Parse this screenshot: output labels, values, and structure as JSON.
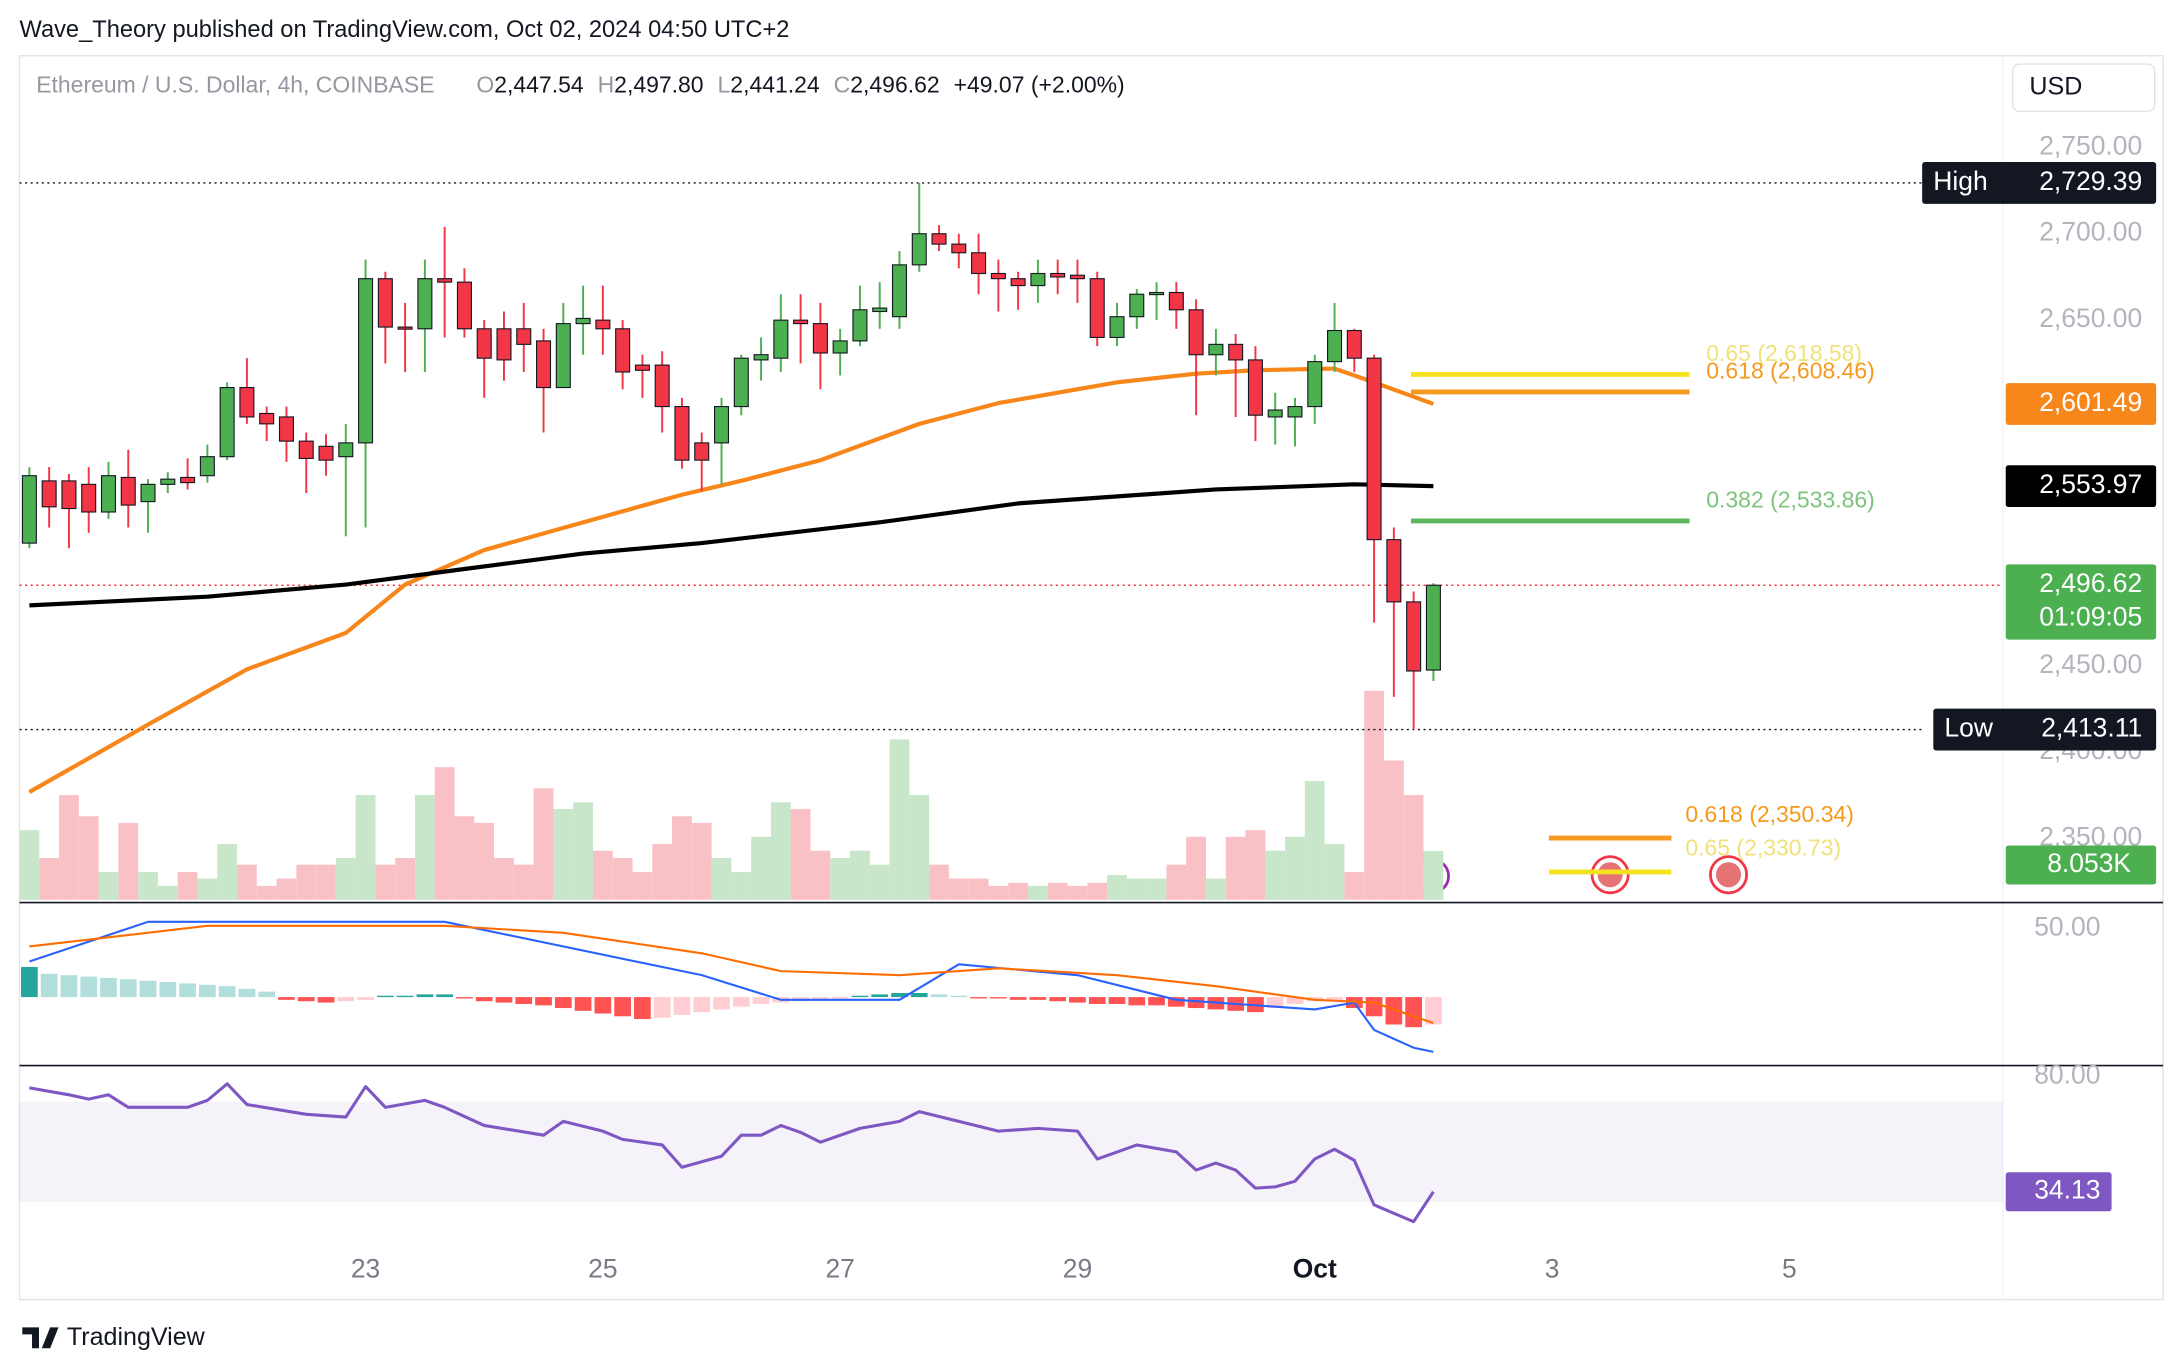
{
  "header": {
    "published": "Wave_Theory published on TradingView.com, Oct 02, 2024 04:50 UTC+2",
    "symbol": "Ethereum / U.S. Dollar, 4h, COINBASE",
    "ohlc": [
      {
        "key": "O",
        "value": "2,447.54"
      },
      {
        "key": "H",
        "value": "2,497.80"
      },
      {
        "key": "L",
        "value": "2,441.24"
      },
      {
        "key": "C",
        "value": "2,496.62"
      }
    ],
    "change": "+49.07 (+2.00%)",
    "currency": "USD"
  },
  "footer": {
    "brand": "TradingView"
  },
  "chart_data": {
    "type": "candlestick",
    "candles": {
      "open": [
        2521,
        2557,
        2557,
        2555,
        2539,
        2559,
        2545,
        2555,
        2559,
        2560,
        2571,
        2611,
        2596,
        2594,
        2580,
        2577,
        2571,
        2579,
        2674,
        2646,
        2645,
        2674,
        2672,
        2645,
        2645,
        2645,
        2638,
        2611,
        2648,
        2650,
        2645,
        2624,
        2624,
        2600,
        2579,
        2579,
        2600,
        2627,
        2628,
        2650,
        2648,
        2631,
        2638,
        2655,
        2652,
        2682,
        2700,
        2694,
        2689,
        2677,
        2674,
        2670,
        2677,
        2676,
        2674,
        2640,
        2652,
        2665,
        2666,
        2656,
        2630,
        2636,
        2627,
        2594,
        2594,
        2600,
        2626,
        2644,
        2628,
        2523,
        2487,
        2447.54
      ],
      "high": [
        2565,
        2565,
        2561,
        2565,
        2568,
        2575,
        2558,
        2562,
        2570,
        2578,
        2614,
        2628,
        2600,
        2600,
        2585,
        2584,
        2590,
        2685,
        2678,
        2660,
        2685,
        2704,
        2680,
        2650,
        2655,
        2660,
        2645,
        2660,
        2670,
        2670,
        2650,
        2630,
        2632,
        2605,
        2585,
        2605,
        2630,
        2640,
        2665,
        2665,
        2660,
        2645,
        2670,
        2672,
        2690,
        2729.39,
        2705,
        2700,
        2700,
        2685,
        2678,
        2685,
        2685,
        2685,
        2678,
        2660,
        2668,
        2672,
        2672,
        2662,
        2645,
        2642,
        2635,
        2608,
        2605,
        2630,
        2660,
        2645,
        2630,
        2530,
        2493,
        2497.8
      ],
      "low": [
        2518,
        2530,
        2518,
        2527,
        2535,
        2530,
        2527,
        2550,
        2552,
        2556,
        2569,
        2590,
        2580,
        2568,
        2550,
        2560,
        2525,
        2530,
        2625,
        2620,
        2620,
        2640,
        2640,
        2605,
        2615,
        2620,
        2585,
        2611,
        2630,
        2630,
        2610,
        2605,
        2585,
        2564,
        2551,
        2555,
        2595,
        2615,
        2620,
        2625,
        2610,
        2618,
        2635,
        2645,
        2645,
        2678,
        2690,
        2680,
        2665,
        2655,
        2656,
        2660,
        2665,
        2660,
        2635,
        2635,
        2645,
        2650,
        2645,
        2595,
        2618,
        2594,
        2580,
        2578,
        2577,
        2590,
        2620,
        2620,
        2475,
        2432,
        2413.11,
        2441.24
      ],
      "close": [
        2560,
        2542,
        2541,
        2539,
        2560,
        2543,
        2555,
        2558,
        2556,
        2571,
        2611,
        2594,
        2590,
        2580,
        2570,
        2569,
        2579,
        2674,
        2646,
        2645,
        2674,
        2672,
        2645,
        2628,
        2627,
        2636,
        2611,
        2648,
        2651,
        2645,
        2620,
        2621,
        2600,
        2569,
        2569,
        2600,
        2628,
        2630,
        2650,
        2648,
        2631,
        2638,
        2656,
        2657,
        2682,
        2700,
        2694,
        2689,
        2677,
        2674,
        2670,
        2677,
        2675,
        2674,
        2640,
        2652,
        2665,
        2666,
        2656,
        2630,
        2636,
        2627,
        2595,
        2598,
        2600,
        2626,
        2644,
        2628,
        2523,
        2487,
        2447,
        2496.62
      ]
    },
    "up_color": "#4caf50",
    "down_color": "#f23645",
    "xlim": [
      -0.5,
      99.8
    ],
    "xticks": [
      {
        "value": 17,
        "label": "23"
      },
      {
        "value": 29,
        "label": "25"
      },
      {
        "value": 41,
        "label": "27"
      },
      {
        "value": 53,
        "label": "29"
      },
      {
        "value": 65,
        "label": "Oct",
        "bold": true
      },
      {
        "value": 77,
        "label": "3"
      },
      {
        "value": 89,
        "label": "5"
      }
    ],
    "ylim": [
      2313,
      2803
    ],
    "yticks": [
      {
        "value": 2750,
        "label": "2,750.00"
      },
      {
        "value": 2700,
        "label": "2,700.00"
      },
      {
        "value": 2650,
        "label": "2,650.00"
      },
      {
        "value": 2450,
        "label": "2,450.00"
      },
      {
        "value": 2400,
        "label": "2,400.00"
      },
      {
        "value": 2350,
        "label": "2,350.00"
      }
    ],
    "moving_averages": [
      {
        "color": "#f7861b",
        "x": [
          0,
          6,
          11,
          16,
          19,
          23,
          28,
          33,
          36,
          40,
          45,
          49,
          55,
          59,
          62,
          66,
          68,
          71
        ],
        "values": [
          2377,
          2416,
          2448,
          2469,
          2497,
          2517,
          2533,
          2549,
          2557,
          2569,
          2590,
          2602,
          2614,
          2619,
          2621,
          2622,
          2614,
          2601.49
        ]
      },
      {
        "color": "#000000",
        "x": [
          0,
          9,
          16,
          22,
          28,
          34,
          43,
          50,
          60,
          67,
          71
        ],
        "values": [
          2485,
          2490,
          2497,
          2506,
          2515,
          2521,
          2533,
          2544,
          2552,
          2555,
          2553.97
        ]
      }
    ],
    "extremes": [
      {
        "title": "High",
        "label": "2,729.39",
        "value": 2729.39
      },
      {
        "title": "Low",
        "label": "2,413.11",
        "value": 2413.11
      }
    ],
    "fib_levels": [
      {
        "label": "0.65 (2,618.58)",
        "value": 2618.58,
        "color": "#f5e322",
        "text_color": "#f0e27a",
        "side": "upper"
      },
      {
        "label": "0.618 (2,608.46)",
        "value": 2608.46,
        "color": "#f59a1d",
        "text_color": "#f59a1d",
        "side": "upper"
      },
      {
        "label": "0.382 (2,533.86)",
        "value": 2533.86,
        "color": "#5cb85c",
        "text_color": "#7cc47c",
        "side": "upper"
      },
      {
        "label": "0.618 (2,350.34)",
        "value": 2350.34,
        "color": "#f59a1d",
        "text_color": "#f59a1d",
        "side": "lower"
      },
      {
        "label": "0.65 (2,330.73)",
        "value": 2330.73,
        "color": "#f5e322",
        "text_color": "#f0e27a",
        "side": "lower"
      }
    ],
    "price_labels": [
      {
        "label": "2,601.49",
        "value": 2601.49,
        "color": "#f7861b"
      },
      {
        "label": "2,553.97",
        "value": 2553.97,
        "color": "#000000"
      },
      {
        "label": "2,496.62",
        "value": 2496.62,
        "color": "#4caf50",
        "countdown": "01:09:05"
      }
    ],
    "volume": {
      "values": [
        11.5,
        6.9,
        17.3,
        13.8,
        4.6,
        12.7,
        4.6,
        2.3,
        4.6,
        3.5,
        9.2,
        5.8,
        2.3,
        3.5,
        5.8,
        5.8,
        6.9,
        17.3,
        5.8,
        6.9,
        17.3,
        21.9,
        13.8,
        12.7,
        6.9,
        5.8,
        18.4,
        15.0,
        16.1,
        8.1,
        6.9,
        4.6,
        9.2,
        13.8,
        12.7,
        6.9,
        4.6,
        10.4,
        16.1,
        15.0,
        8.1,
        6.9,
        8.1,
        5.8,
        26.5,
        17.3,
        5.8,
        3.5,
        3.5,
        2.3,
        2.8,
        2.3,
        2.8,
        2.3,
        2.8,
        4.1,
        3.5,
        3.5,
        5.8,
        10.4,
        3.5,
        10.4,
        11.5,
        8.1,
        10.4,
        19.6,
        9.2,
        4.6,
        34.5,
        23.0,
        17.3,
        8.053
      ],
      "value_labels_last": "8.053K",
      "ylim": [
        0,
        23
      ],
      "up_color": "#c8e6c9",
      "down_color": "#f9c1c6",
      "label_color": "#4caf50"
    },
    "macd": {
      "ylim": [
        -50,
        67
      ],
      "yticks": [
        {
          "value": 50,
          "label": "50.00"
        }
      ],
      "histogram": [
        22,
        17,
        16,
        15,
        14,
        13,
        12,
        11,
        10,
        9,
        8,
        6,
        4,
        -2,
        -3,
        -4,
        -3,
        -2,
        1,
        1,
        2,
        2,
        -1,
        -3,
        -4,
        -5,
        -6,
        -8,
        -10,
        -12,
        -14,
        -16,
        -15,
        -13,
        -11,
        -9,
        -7,
        -5,
        -4,
        -3,
        -2,
        -1,
        1,
        2,
        3,
        3,
        2,
        1,
        -1,
        -1,
        -2,
        -2,
        -3,
        -4,
        -5,
        -5,
        -6,
        -6,
        -7,
        -8,
        -9,
        -10,
        -11,
        -8,
        -5,
        -3,
        -2,
        -8,
        -14,
        -20,
        -22,
        -20
      ],
      "hist_colors": [
        "#26a69a",
        "#b2dfdb",
        "#ff5252",
        "#ffcdd2"
      ],
      "lines": [
        {
          "color": "#2962ff",
          "x": [
            0,
            6,
            21,
            34,
            38,
            44,
            47,
            53,
            58,
            65,
            67,
            68,
            70,
            71
          ],
          "values": [
            26,
            55,
            55,
            16,
            -2,
            -2,
            24,
            16,
            -2,
            -9,
            -4,
            -24,
            -37,
            -40
          ]
        },
        {
          "color": "#ff6d00",
          "x": [
            0,
            9,
            21,
            27,
            34,
            38,
            44,
            49,
            55,
            60,
            65,
            68,
            71
          ],
          "values": [
            37,
            52,
            52,
            47,
            32,
            19,
            16,
            21,
            16,
            8,
            -2,
            -4,
            -19
          ]
        }
      ]
    },
    "rsi": {
      "ylim": [
        -7.2,
        82.8
      ],
      "yticks": [
        {
          "value": 80,
          "label": "80.00"
        }
      ],
      "band": [
        30,
        70
      ],
      "color": "#7e57c2",
      "x": [
        0,
        2,
        3,
        4,
        5,
        8,
        9,
        10,
        11,
        14,
        16,
        17,
        18,
        20,
        21,
        23,
        26,
        27,
        29,
        30,
        32,
        33,
        35,
        36,
        37,
        38,
        39,
        40,
        42,
        44,
        45,
        47,
        49,
        51,
        53,
        54,
        56,
        58,
        59,
        60,
        61,
        62,
        63,
        64,
        65,
        66,
        67,
        68,
        70,
        71
      ],
      "values": [
        75.6,
        72.8,
        71.1,
        72.8,
        67.8,
        67.8,
        70.6,
        77.2,
        68.9,
        65.0,
        63.9,
        76.1,
        67.8,
        70.6,
        67.8,
        60.6,
        56.7,
        62.2,
        58.3,
        55.0,
        52.8,
        43.9,
        48.3,
        56.7,
        56.7,
        60.6,
        57.8,
        53.9,
        59.4,
        62.2,
        66.1,
        62.2,
        58.3,
        59.4,
        58.3,
        47.2,
        52.8,
        50.0,
        42.8,
        45.6,
        42.8,
        35.6,
        36.1,
        38.3,
        47.2,
        51.1,
        46.7,
        28.9,
        22.2,
        34.13
      ]
    }
  }
}
